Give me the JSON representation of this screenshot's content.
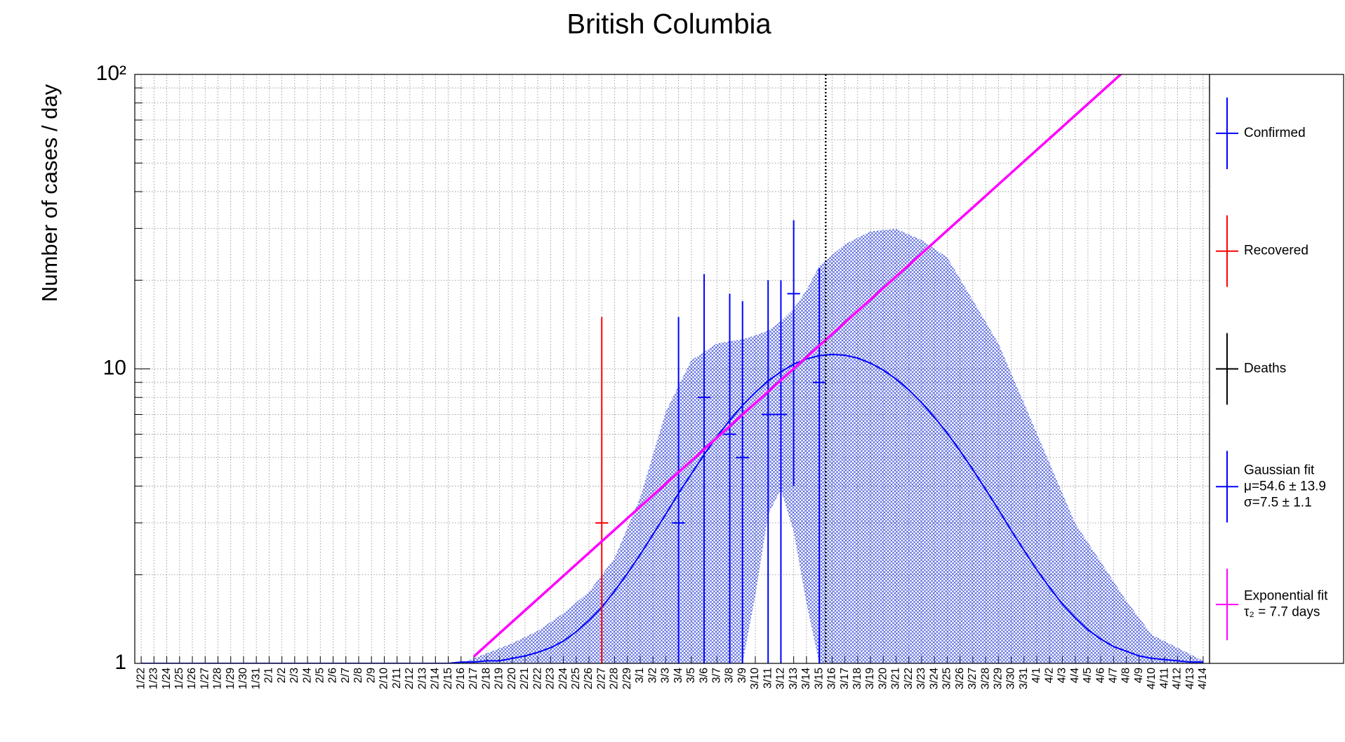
{
  "chart_data": {
    "type": "line",
    "title": "British Columbia",
    "y_label": "Number of cases / day",
    "log_y": true,
    "grid": true,
    "categories": [
      "1/22",
      "1/23",
      "1/24",
      "1/25",
      "1/26",
      "1/27",
      "1/28",
      "1/29",
      "1/30",
      "1/31",
      "2/1",
      "2/2",
      "2/3",
      "2/4",
      "2/5",
      "2/6",
      "2/7",
      "2/8",
      "2/9",
      "2/10",
      "2/11",
      "2/12",
      "2/13",
      "2/14",
      "2/15",
      "2/16",
      "2/17",
      "2/18",
      "2/19",
      "2/20",
      "2/21",
      "2/22",
      "2/23",
      "2/24",
      "2/25",
      "2/26",
      "2/27",
      "2/28",
      "2/29",
      "3/1",
      "3/2",
      "3/3",
      "3/4",
      "3/5",
      "3/6",
      "3/7",
      "3/8",
      "3/9",
      "3/10",
      "3/11",
      "3/12",
      "3/13",
      "3/14",
      "3/15",
      "3/16",
      "3/17",
      "3/18",
      "3/19",
      "3/20",
      "3/21",
      "3/22",
      "3/23",
      "3/24",
      "3/25",
      "3/26",
      "3/27",
      "3/28",
      "3/29",
      "3/30",
      "3/31",
      "4/1",
      "4/2",
      "4/3",
      "4/4",
      "4/5",
      "4/6",
      "4/7",
      "4/8",
      "4/9",
      "4/10",
      "4/11",
      "4/12",
      "4/13",
      "4/14"
    ],
    "ylim": [
      1,
      100
    ],
    "yticks": [
      1,
      10,
      {
        "value": 100,
        "label": "10²"
      }
    ],
    "yminorticks": [
      2,
      3,
      4,
      5,
      6,
      7,
      8,
      9,
      20,
      30,
      40,
      50,
      60,
      70,
      80,
      90
    ],
    "marker_date": "3/16",
    "series": [
      {
        "name": "Confirmed",
        "color": "#0000ff",
        "style": "errorbar",
        "x": [
          "3/4",
          "3/6",
          "3/8",
          "3/9",
          "3/11",
          "3/12",
          "3/13",
          "3/15"
        ],
        "values": [
          3,
          8,
          6,
          5,
          7,
          7,
          18,
          9
        ],
        "errors": [
          12,
          13,
          12,
          12,
          13,
          13,
          14,
          13
        ]
      },
      {
        "name": "Recovered",
        "color": "#ff0000",
        "style": "errorbar",
        "x": [
          "2/27"
        ],
        "values": [
          3
        ],
        "errors": [
          12
        ]
      },
      {
        "name": "Deaths",
        "color": "#000000",
        "style": "errorbar",
        "x": [],
        "values": [],
        "errors": []
      },
      {
        "name": "Gaussian fit",
        "legend_lines": [
          "μ=54.6 ± 13.9",
          "σ=7.5 ± 1.1"
        ],
        "color": "#0000ff",
        "style": "curve",
        "values": [
          1,
          1,
          1,
          1,
          1,
          1,
          1,
          1,
          1,
          1,
          1,
          1,
          1,
          1,
          1,
          1,
          1,
          1,
          1,
          1,
          1,
          1,
          1,
          1,
          1,
          1.01,
          1.01,
          1.02,
          1.02,
          1.04,
          1.06,
          1.09,
          1.13,
          1.19,
          1.28,
          1.4,
          1.55,
          1.76,
          2.02,
          2.34,
          2.74,
          3.21,
          3.78,
          4.4,
          5.12,
          5.89,
          6.69,
          7.52,
          8.32,
          9.1,
          9.78,
          10.37,
          10.81,
          11.09,
          11.2,
          11.13,
          10.88,
          10.46,
          9.91,
          9.24,
          8.49,
          7.68,
          6.85,
          6.05,
          5.27,
          4.55,
          3.9,
          3.33,
          2.83,
          2.42,
          2.08,
          1.81,
          1.59,
          1.43,
          1.3,
          1.21,
          1.14,
          1.1,
          1.06,
          1.04,
          1.03,
          1.02,
          1.01,
          1.01
        ],
        "band": {
          "x": [
            "2/16",
            "2/20",
            "2/22",
            "2/24",
            "2/26",
            "2/28",
            "3/1",
            "3/3",
            "3/5",
            "3/7",
            "3/8",
            "3/9",
            "3/10",
            "3/11",
            "3/12",
            "3/13",
            "3/14",
            "3/15",
            "3/17",
            "3/19",
            "3/21",
            "3/23",
            "3/25",
            "3/27",
            "3/29",
            "3/31",
            "4/2",
            "4/4",
            "4/6",
            "4/8",
            "4/10",
            "4/12",
            "4/14"
          ],
          "upper": [
            1,
            1.17,
            1.29,
            1.48,
            1.75,
            2.28,
            3.65,
            7.15,
            10.7,
            12.2,
            12.4,
            12.6,
            13.0,
            13.5,
            14.5,
            16.0,
            18.5,
            22.4,
            26.5,
            29.3,
            29.9,
            27.4,
            23.9,
            17.1,
            12.2,
            7.64,
            4.78,
            2.99,
            2.21,
            1.63,
            1.25,
            1.13,
            1.02
          ],
          "lower": [
            1,
            1,
            1,
            1,
            1,
            1,
            1,
            1,
            1,
            1,
            1,
            1,
            1.7,
            3.2,
            3.9,
            2.8,
            1.6,
            1,
            1,
            1,
            1,
            1,
            1,
            1,
            1,
            1,
            1,
            1,
            1,
            1,
            1,
            1,
            1
          ]
        }
      },
      {
        "name": "Exponential fit",
        "legend_lines": [
          "τ₂ = 7.7 days"
        ],
        "color": "#ff00ff",
        "style": "curve",
        "values": [
          null,
          null,
          null,
          null,
          null,
          null,
          null,
          null,
          null,
          null,
          null,
          null,
          null,
          null,
          null,
          null,
          null,
          null,
          null,
          null,
          null,
          null,
          null,
          null,
          null,
          null,
          1.055,
          1.155,
          1.264,
          1.383,
          1.513,
          1.655,
          1.811,
          1.982,
          2.169,
          2.373,
          2.597,
          2.841,
          3.109,
          3.402,
          3.722,
          4.073,
          4.457,
          4.877,
          5.336,
          5.839,
          6.389,
          6.991,
          7.65,
          8.37,
          9.158,
          10.02,
          10.96,
          12.0,
          13.13,
          14.36,
          15.72,
          17.2,
          18.82,
          20.59,
          22.53,
          24.65,
          26.97,
          29.51,
          32.29,
          35.33,
          38.66,
          42.3,
          46.28,
          50.64,
          55.41,
          60.63,
          66.34,
          72.59,
          79.43,
          86.91,
          95.1,
          104.1,
          null,
          null,
          null,
          null,
          null,
          null
        ]
      }
    ]
  }
}
